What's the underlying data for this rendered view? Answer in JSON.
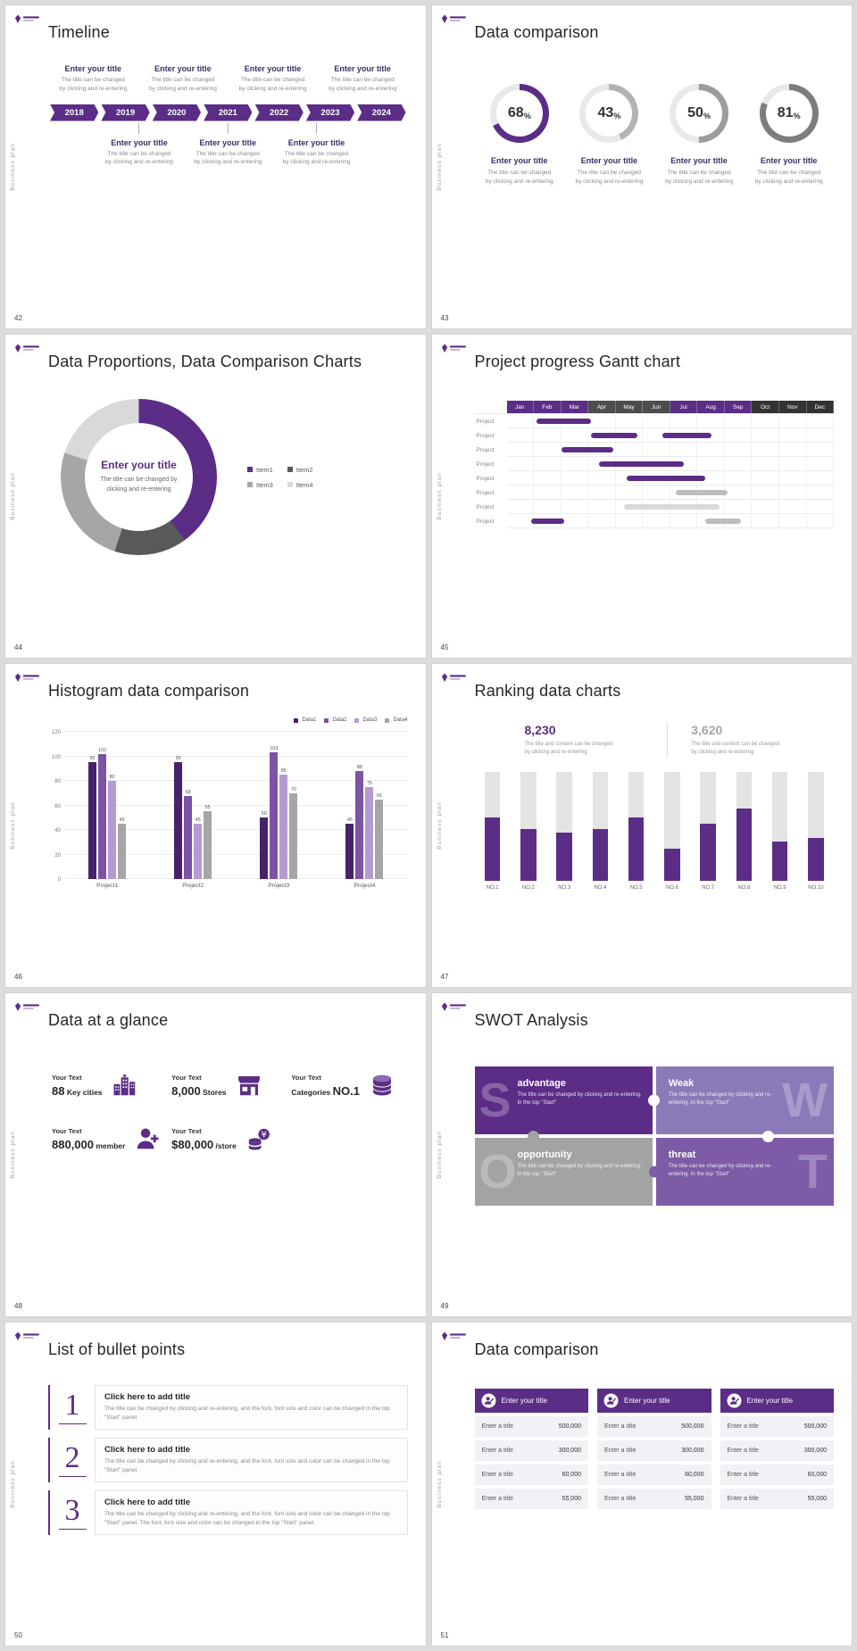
{
  "common": {
    "sidebar_text": "Business plan"
  },
  "theme": {
    "purple": "#5b2d86",
    "purple_mid": "#7d5ba6",
    "purple_light": "#b39bd2",
    "gray": "#a6a6a6",
    "dark": "#404040"
  },
  "s42": {
    "page": "42",
    "title": "Timeline",
    "item_title": "Enter your title",
    "desc1": "The title can be changed",
    "desc2": "by clicking and re-entering",
    "years": [
      "2018",
      "2019",
      "2020",
      "2021",
      "2022",
      "2023",
      "2024"
    ]
  },
  "s43": {
    "page": "43",
    "title": "Data comparison",
    "item_title": "Enter your title",
    "desc1": "The title can be changed",
    "desc2": "by clicking and re-entering"
  },
  "s44": {
    "page": "44",
    "title": "Data Proportions, Data Comparison Charts",
    "center_title": "Enter your title",
    "center_desc": "The title can be changed by clicking and re-entering"
  },
  "s45": {
    "page": "45",
    "title": "Project progress Gantt chart"
  },
  "s46": {
    "page": "46",
    "title": "Histogram data comparison"
  },
  "s47": {
    "page": "47",
    "title": "Ranking data charts",
    "stat1": {
      "value": "8,230",
      "desc1": "The title and content can be changed",
      "desc2": "by clicking and re-entering",
      "color": "#5b2d86"
    },
    "stat2": {
      "value": "3,620",
      "desc1": "The title and content can be changed",
      "desc2": "by clicking and re-entering",
      "color": "#a6a6a6"
    }
  },
  "s48": {
    "page": "48",
    "title": "Data at a glance",
    "items": [
      {
        "label": "Your Text",
        "big": "88",
        "unit": "Key cities",
        "icon": "city-icon"
      },
      {
        "label": "Your Text",
        "big": "8,000",
        "unit": "Stores",
        "icon": "store-icon"
      },
      {
        "label": "Your Text",
        "prefix": "Categories",
        "big": "NO.1",
        "unit": "",
        "icon": "database-icon"
      },
      {
        "label": "Your Text",
        "big": "880,000",
        "unit": "member",
        "icon": "member-icon"
      },
      {
        "label": "Your Text",
        "big": "$80,000",
        "unit": "/store",
        "icon": "coins-icon"
      }
    ]
  },
  "s49": {
    "page": "49",
    "title": "SWOT Analysis",
    "quads": [
      {
        "letter": "S",
        "title": "advantage",
        "desc": "The title can be changed by clicking and re-entering. In the top \"Start\"",
        "color": "#5b2d86"
      },
      {
        "letter": "W",
        "title": "Weak",
        "desc": "The title can be changed by clicking and re-entering. In the top \"Start\"",
        "color": "#8b7ab8"
      },
      {
        "letter": "O",
        "title": "opportunity",
        "desc": "The title can be changed by clicking and re-entering. In the top \"Start\"",
        "color": "#a3a3a3"
      },
      {
        "letter": "T",
        "title": "threat",
        "desc": "The title can be changed by clicking and re-entering. In the top \"Start\"",
        "color": "#7d5ba6"
      }
    ]
  },
  "s50": {
    "page": "50",
    "title": "List of bullet points",
    "items": [
      {
        "num": "1",
        "title": "Click here to add title",
        "desc": "The title can be changed by clicking and re-entering, and the font, font size and color can be changed in the top \"Start\" panel"
      },
      {
        "num": "2",
        "title": "Click here to add title",
        "desc": "The title can be changed by clicking and re-entering, and the font, font size and color can be changed in the top \"Start\" panel"
      },
      {
        "num": "3",
        "title": "Click here to add title",
        "desc": "The title can be changed by clicking and re-entering, and the font, font size and color can be changed in the top \"Start\" panel. The font, font size and color can be changed in the top \"Start\" panel."
      }
    ]
  },
  "s51": {
    "page": "51",
    "title": "Data comparison",
    "card_title": "Enter your title",
    "rows": [
      {
        "label": "Enter a title",
        "value": "500,000"
      },
      {
        "label": "Enter a title",
        "value": "300,000"
      },
      {
        "label": "Enter a title",
        "value": "60,000"
      },
      {
        "label": "Enter a title",
        "value": "55,000"
      }
    ]
  },
  "chart_data": [
    {
      "id": "rings-43",
      "type": "pie",
      "title": "Data comparison progress rings",
      "values": [
        68,
        43,
        50,
        81
      ],
      "unit": "%",
      "colors": [
        "#5b2d86",
        "#b3b3b3",
        "#9c9c9c",
        "#7d7d7d"
      ],
      "track": "#e9e9e9"
    },
    {
      "id": "donut-44",
      "type": "pie",
      "title": "Data proportions donut",
      "labels": [
        "Item1",
        "Item2",
        "Item3",
        "Item4"
      ],
      "values": [
        40,
        15,
        25,
        20
      ],
      "colors": [
        "#5b2d86",
        "#595959",
        "#a6a6a6",
        "#d9d9d9"
      ],
      "legend_position": "right"
    },
    {
      "id": "gantt-45",
      "type": "table",
      "title": "Project progress Gantt chart",
      "months": [
        "Jan",
        "Feb",
        "Mar",
        "Apr",
        "May",
        "Jun",
        "Jul",
        "Aug",
        "Sep",
        "Oct",
        "Nov",
        "Dec"
      ],
      "row_label": "Project",
      "num_rows": 8,
      "header_colors": [
        "#5b2d86",
        "#4d4d4d",
        "#5b2d86",
        "#333333"
      ],
      "bar_colors": {
        "p": "#5b2d86",
        "g": "#bdbdbd",
        "l": "#d9d9d9"
      },
      "bars": [
        [
          0,
          1.1,
          2.0,
          "p"
        ],
        [
          1,
          3.1,
          1.7,
          "p"
        ],
        [
          1,
          5.7,
          1.8,
          "p"
        ],
        [
          2,
          2.0,
          1.9,
          "p"
        ],
        [
          3,
          3.4,
          3.1,
          "p"
        ],
        [
          4,
          4.4,
          2.9,
          "p"
        ],
        [
          5,
          6.2,
          1.9,
          "g"
        ],
        [
          6,
          4.3,
          3.5,
          "l"
        ],
        [
          7,
          0.9,
          1.2,
          "p"
        ],
        [
          7,
          7.3,
          1.3,
          "g"
        ]
      ]
    },
    {
      "id": "histogram-46",
      "type": "bar",
      "title": "Histogram data comparison",
      "categories": [
        "Project1",
        "Project2",
        "Project3",
        "Project4"
      ],
      "series": [
        {
          "name": "Data1",
          "color": "#46226b",
          "values": [
            95,
            95,
            50,
            45
          ]
        },
        {
          "name": "Data2",
          "color": "#7c53a5",
          "values": [
            102,
            68,
            103,
            88
          ]
        },
        {
          "name": "Data3",
          "color": "#b39bd2",
          "values": [
            80,
            45,
            85,
            75
          ]
        },
        {
          "name": "Data4",
          "color": "#a6a6a6",
          "values": [
            45,
            55,
            70,
            65
          ]
        }
      ],
      "ylim": [
        0,
        120
      ],
      "yticks": [
        0,
        20,
        40,
        60,
        80,
        100,
        120
      ],
      "grid": true,
      "legend_position": "top-right"
    },
    {
      "id": "ranking-47",
      "type": "bar",
      "title": "Ranking data chart",
      "categories": [
        "NO.1",
        "NO.2",
        "NO.3",
        "NO.4",
        "NO.5",
        "NO.6",
        "NO.7",
        "NO.8",
        "NO.9",
        "NO.10"
      ],
      "values": [
        58,
        47,
        44,
        47,
        58,
        29,
        52,
        66,
        36,
        39
      ],
      "ylim": [
        0,
        100
      ],
      "bar_color": "#5b2d86",
      "track_color": "#e4e4e4"
    }
  ]
}
